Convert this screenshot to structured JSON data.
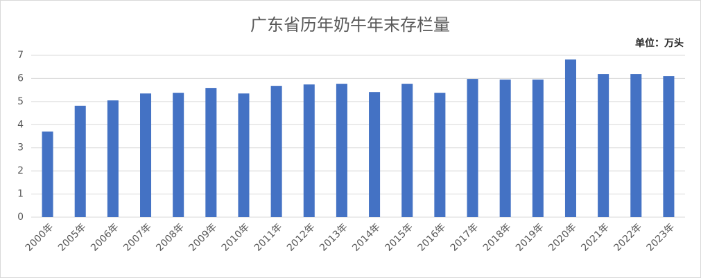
{
  "chart_data": {
    "type": "bar",
    "title": "广东省历年奶牛年末存栏量",
    "unit": "单位：万头",
    "categories": [
      "2000年",
      "2005年",
      "2006年",
      "2007年",
      "2008年",
      "2009年",
      "2010年",
      "2011年",
      "2012年",
      "2013年",
      "2014年",
      "2015年",
      "2016年",
      "2017年",
      "2018年",
      "2019年",
      "2020年",
      "2021年",
      "2022年",
      "2023年"
    ],
    "values": [
      3.7,
      4.82,
      5.05,
      5.35,
      5.38,
      5.59,
      5.35,
      5.68,
      5.74,
      5.77,
      5.41,
      5.77,
      5.38,
      5.98,
      5.95,
      5.95,
      6.82,
      6.19,
      6.19,
      6.1
    ],
    "color": "#4472c4",
    "ylim": [
      0,
      7
    ],
    "yticks": [
      0,
      1,
      2,
      3,
      4,
      5,
      6,
      7
    ],
    "grid": true
  }
}
